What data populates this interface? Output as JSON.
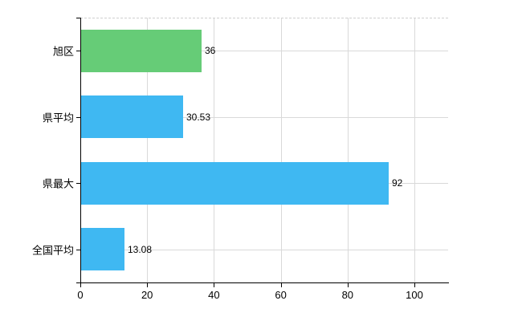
{
  "chart_data": {
    "type": "bar",
    "orientation": "horizontal",
    "title": "",
    "categories": [
      "旭区",
      "県平均",
      "県最大",
      "全国平均"
    ],
    "values": [
      36,
      30.53,
      92,
      13.08
    ],
    "value_labels": [
      "36",
      "30.53",
      "92",
      "13.08"
    ],
    "bar_colors": [
      "#66cc77",
      "#3fb8f2",
      "#3fb8f2",
      "#3fb8f2"
    ],
    "x_ticks": [
      0,
      20,
      40,
      60,
      80,
      100
    ],
    "x_tick_labels": [
      "0",
      "20",
      "40",
      "60",
      "80",
      "100"
    ],
    "xlim": [
      0,
      110
    ],
    "grid": true,
    "legend": "none",
    "colors": {
      "green_bar": "#66cc77",
      "blue_bar": "#3fb8f2",
      "grid": "#d9d9d9",
      "axis": "#000000",
      "text": "#000000",
      "background": "#ffffff"
    }
  }
}
